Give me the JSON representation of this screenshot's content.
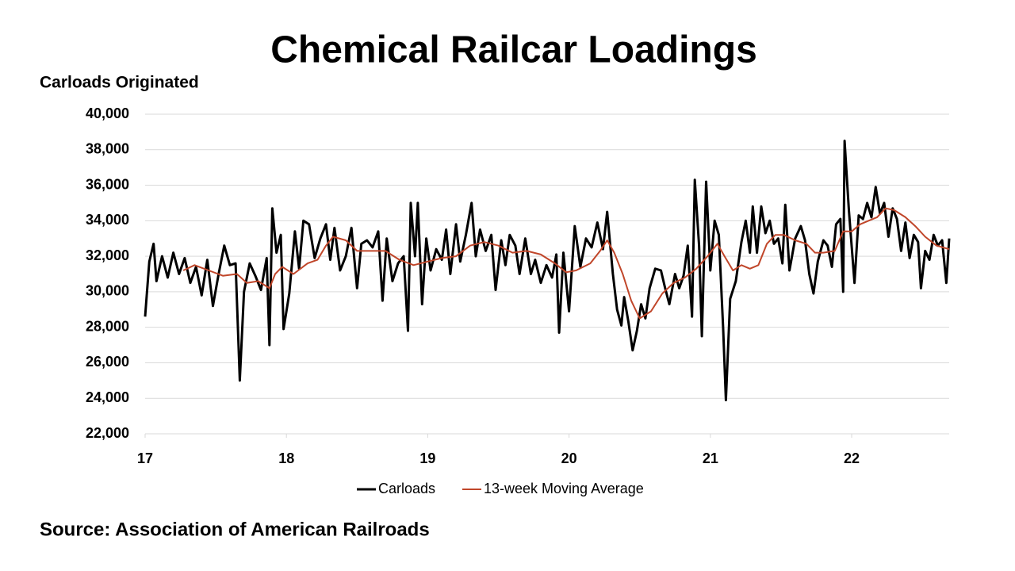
{
  "chart_data": {
    "type": "line",
    "title": "Chemical Railcar Loadings",
    "y_label": "Carloads Originated",
    "source": "Source: Association of American Railroads",
    "xlim": [
      17,
      22.69
    ],
    "xticks": [
      17,
      18,
      19,
      20,
      21,
      22
    ],
    "ylim": [
      22000,
      40000
    ],
    "yticks": [
      {
        "value": 22000,
        "label": "22,000"
      },
      {
        "value": 24000,
        "label": "24,000"
      },
      {
        "value": 26000,
        "label": "26,000"
      },
      {
        "value": 28000,
        "label": "28,000"
      },
      {
        "value": 30000,
        "label": "30,000"
      },
      {
        "value": 32000,
        "label": "32,000"
      },
      {
        "value": 34000,
        "label": "34,000"
      },
      {
        "value": 36000,
        "label": "36,000"
      },
      {
        "value": 38000,
        "label": "38,000"
      },
      {
        "value": 40000,
        "label": "40,000"
      }
    ],
    "grid": true,
    "legend": "bottom",
    "series": [
      {
        "name": "Carloads",
        "color": "#000000",
        "x": [
          17.0,
          17.03,
          17.06,
          17.08,
          17.12,
          17.16,
          17.2,
          17.24,
          17.28,
          17.32,
          17.36,
          17.4,
          17.44,
          17.48,
          17.52,
          17.56,
          17.6,
          17.64,
          17.67,
          17.7,
          17.74,
          17.78,
          17.82,
          17.86,
          17.88,
          17.9,
          17.93,
          17.96,
          17.98,
          18.02,
          18.06,
          18.09,
          18.12,
          18.16,
          18.2,
          18.24,
          18.28,
          18.31,
          18.34,
          18.38,
          18.42,
          18.46,
          18.5,
          18.53,
          18.57,
          18.61,
          18.65,
          18.68,
          18.71,
          18.75,
          18.79,
          18.83,
          18.86,
          18.88,
          18.91,
          18.93,
          18.96,
          18.99,
          19.02,
          19.06,
          19.1,
          19.13,
          19.16,
          19.2,
          19.23,
          19.27,
          19.31,
          19.34,
          19.37,
          19.41,
          19.45,
          19.48,
          19.52,
          19.55,
          19.58,
          19.62,
          19.65,
          19.69,
          19.73,
          19.76,
          19.8,
          19.84,
          19.88,
          19.91,
          19.93,
          19.96,
          20.0,
          20.04,
          20.08,
          20.12,
          20.16,
          20.2,
          20.24,
          20.27,
          20.31,
          20.34,
          20.37,
          20.39,
          20.42,
          20.45,
          20.48,
          20.51,
          20.54,
          20.57,
          20.61,
          20.65,
          20.68,
          20.71,
          20.75,
          20.78,
          20.81,
          20.84,
          20.87,
          20.89,
          20.92,
          20.94,
          20.97,
          21.0,
          21.03,
          21.06,
          21.09,
          21.11,
          21.14,
          21.18,
          21.22,
          21.25,
          21.28,
          21.3,
          21.33,
          21.36,
          21.39,
          21.42,
          21.45,
          21.48,
          21.51,
          21.53,
          21.56,
          21.6,
          21.64,
          21.67,
          21.7,
          21.73,
          21.76,
          21.8,
          21.83,
          21.86,
          21.89,
          21.92,
          21.94,
          21.95,
          21.98,
          22.02,
          22.05,
          22.08,
          22.11,
          22.14,
          22.17,
          22.2,
          22.23,
          22.26,
          22.29,
          22.32,
          22.35,
          22.38,
          22.41,
          22.44,
          22.47,
          22.49,
          22.52,
          22.55,
          22.58,
          22.61,
          22.64,
          22.67,
          22.69
        ],
        "values": [
          28600,
          31700,
          32700,
          30600,
          32000,
          30800,
          32200,
          31000,
          31900,
          30500,
          31400,
          29800,
          31800,
          29200,
          31000,
          32600,
          31500,
          31600,
          25000,
          30000,
          31600,
          30900,
          30100,
          31900,
          27000,
          34700,
          32200,
          33200,
          27900,
          29900,
          33400,
          31300,
          34000,
          33800,
          31900,
          33000,
          33800,
          31800,
          33600,
          31200,
          32000,
          33600,
          30200,
          32700,
          32900,
          32500,
          33400,
          29500,
          33000,
          30600,
          31600,
          32000,
          27800,
          35000,
          32000,
          35000,
          29300,
          33000,
          31200,
          32400,
          31800,
          33500,
          31000,
          33800,
          31700,
          33200,
          35000,
          32000,
          33500,
          32300,
          33200,
          30100,
          32900,
          31500,
          33200,
          32600,
          31000,
          33000,
          31000,
          31800,
          30500,
          31500,
          30800,
          32100,
          27700,
          32200,
          28900,
          33700,
          31400,
          33000,
          32500,
          33900,
          32400,
          34500,
          31000,
          29000,
          28100,
          29700,
          28300,
          26700,
          27800,
          29300,
          28500,
          30200,
          31300,
          31200,
          30200,
          29300,
          31000,
          30200,
          30900,
          32600,
          28600,
          36300,
          32600,
          27500,
          36200,
          31200,
          34000,
          33200,
          28000,
          23900,
          29600,
          30600,
          32800,
          34000,
          32200,
          34800,
          32200,
          34800,
          33300,
          34000,
          32700,
          33000,
          31600,
          34900,
          31200,
          33000,
          33700,
          32900,
          31000,
          29900,
          31700,
          32900,
          32600,
          31400,
          33800,
          34100,
          30000,
          38500,
          34600,
          30500,
          34300,
          34100,
          35000,
          34200,
          35900,
          34400,
          35000,
          33100,
          34700,
          34100,
          32300,
          33900,
          31900,
          33200,
          32800,
          30200,
          32300,
          31800,
          33200,
          32600,
          32900,
          30500,
          33000
        ]
      },
      {
        "name": "13-week Moving Average",
        "color": "#c0462a",
        "x": [
          17.27,
          17.35,
          17.45,
          17.55,
          17.65,
          17.72,
          17.8,
          17.88,
          17.92,
          17.97,
          18.05,
          18.15,
          18.22,
          18.28,
          18.33,
          18.42,
          18.5,
          18.6,
          18.7,
          18.8,
          18.9,
          19.0,
          19.1,
          19.2,
          19.3,
          19.4,
          19.5,
          19.6,
          19.7,
          19.8,
          19.9,
          19.98,
          20.05,
          20.15,
          20.22,
          20.27,
          20.32,
          20.38,
          20.44,
          20.5,
          20.58,
          20.66,
          20.74,
          20.82,
          20.9,
          20.98,
          21.05,
          21.1,
          21.16,
          21.22,
          21.28,
          21.34,
          21.4,
          21.46,
          21.52,
          21.6,
          21.68,
          21.74,
          21.8,
          21.88,
          21.94,
          22.0,
          22.06,
          22.12,
          22.18,
          22.24,
          22.3,
          22.38,
          22.45,
          22.52,
          22.6,
          22.69
        ],
        "values": [
          31200,
          31500,
          31200,
          30900,
          31000,
          30500,
          30600,
          30200,
          31000,
          31400,
          31000,
          31600,
          31800,
          32600,
          33100,
          32900,
          32300,
          32300,
          32300,
          31800,
          31500,
          31700,
          31900,
          32000,
          32600,
          32800,
          32600,
          32200,
          32300,
          32100,
          31600,
          31100,
          31200,
          31600,
          32300,
          32900,
          32200,
          31000,
          29500,
          28500,
          28900,
          29900,
          30500,
          30800,
          31300,
          32000,
          32700,
          32000,
          31200,
          31500,
          31300,
          31500,
          32700,
          33200,
          33200,
          32900,
          32700,
          32200,
          32200,
          32300,
          33400,
          33400,
          33800,
          34000,
          34200,
          34700,
          34600,
          34200,
          33700,
          33100,
          32600,
          32400
        ]
      }
    ]
  }
}
